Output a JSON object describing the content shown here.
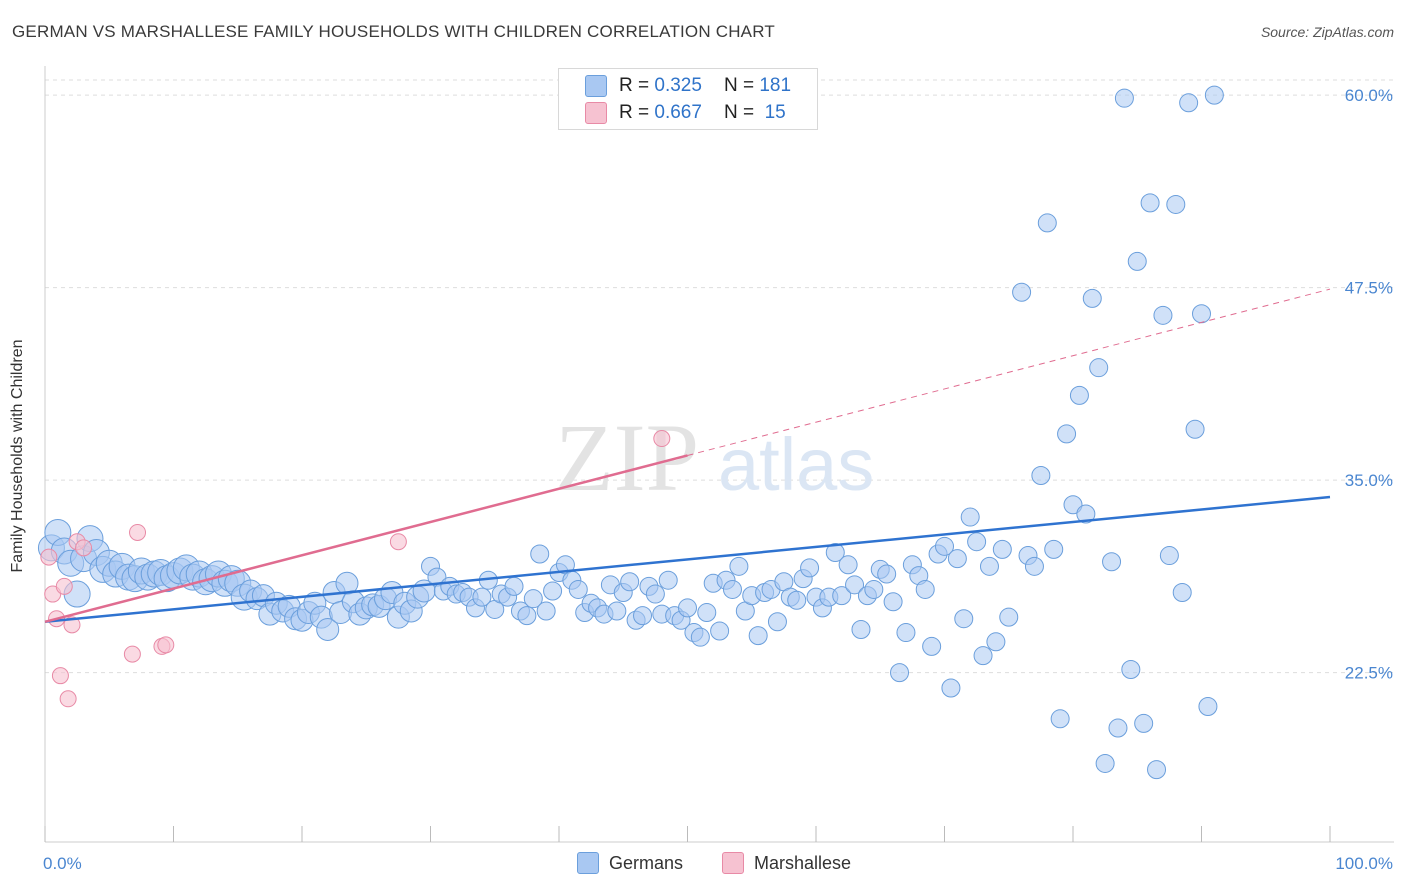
{
  "title": "GERMAN VS MARSHALLESE FAMILY HOUSEHOLDS WITH CHILDREN CORRELATION CHART",
  "source": "Source: ZipAtlas.com",
  "watermark": {
    "zip": "ZIP",
    "atlas": "atlas"
  },
  "colors": {
    "germans_fill": "#a9c8f2",
    "germans_stroke": "#6b9fdc",
    "germans_line": "#2f73d0",
    "marshallese_fill": "#f6c2d1",
    "marshallese_stroke": "#e88aa6",
    "marshallese_line": "#e06c90",
    "tick_label": "#4a86d0",
    "grid": "#dddddd"
  },
  "legend": {
    "germans": {
      "r_label": "R =",
      "r_value": "0.325",
      "n_label": "N =",
      "n_value": "181"
    },
    "marshallese": {
      "r_label": "R =",
      "r_value": "0.667",
      "n_label": "N =",
      "n_value": "15"
    }
  },
  "chart_data": {
    "type": "scatter",
    "title": "GERMAN VS MARSHALLESE FAMILY HOUSEHOLDS WITH CHILDREN CORRELATION CHART",
    "xlabel": "",
    "ylabel": "Family Households with Children",
    "xlim": [
      0,
      100
    ],
    "ylim": [
      11.5,
      61.5
    ],
    "y_ticks": [
      22.5,
      35.0,
      47.5,
      60.0
    ],
    "y_tick_labels": [
      "22.5%",
      "35.0%",
      "47.5%",
      "60.0%"
    ],
    "x_tick_labels": [
      "0.0%",
      "100.0%"
    ],
    "grid": "horizontal dashed",
    "legend_position": "top-center",
    "series": [
      {
        "name": "Germans",
        "trend": {
          "x": [
            0,
            100
          ],
          "y": [
            25.8,
            33.9
          ]
        },
        "points": [
          [
            0.5,
            30.6
          ],
          [
            1,
            31.6
          ],
          [
            1.5,
            30.4
          ],
          [
            2,
            29.6
          ],
          [
            2.5,
            27.6
          ],
          [
            3,
            29.9
          ],
          [
            3.5,
            31.2
          ],
          [
            4,
            30.3
          ],
          [
            4.5,
            29.2
          ],
          [
            5,
            29.6
          ],
          [
            5.5,
            28.9
          ],
          [
            6,
            29.4
          ],
          [
            6.5,
            28.7
          ],
          [
            7,
            28.6
          ],
          [
            7.5,
            29.1
          ],
          [
            8,
            28.7
          ],
          [
            8.5,
            28.9
          ],
          [
            9,
            29.0
          ],
          [
            9.5,
            28.6
          ],
          [
            10,
            28.8
          ],
          [
            10.5,
            29.1
          ],
          [
            11,
            29.3
          ],
          [
            11.5,
            28.7
          ],
          [
            12,
            28.9
          ],
          [
            12.5,
            28.4
          ],
          [
            13,
            28.6
          ],
          [
            13.5,
            28.9
          ],
          [
            14,
            28.3
          ],
          [
            14.5,
            28.6
          ],
          [
            15,
            28.3
          ],
          [
            15.5,
            27.4
          ],
          [
            16,
            27.8
          ],
          [
            16.5,
            27.3
          ],
          [
            17,
            27.5
          ],
          [
            17.5,
            26.3
          ],
          [
            18,
            27.0
          ],
          [
            18.5,
            26.5
          ],
          [
            19,
            26.8
          ],
          [
            19.5,
            26.0
          ],
          [
            20,
            25.9
          ],
          [
            20.5,
            26.4
          ],
          [
            21,
            27.0
          ],
          [
            21.5,
            26.1
          ],
          [
            22,
            25.3
          ],
          [
            22.5,
            27.7
          ],
          [
            23,
            26.4
          ],
          [
            23.5,
            28.3
          ],
          [
            24,
            27.1
          ],
          [
            24.5,
            26.3
          ],
          [
            25,
            26.7
          ],
          [
            25.5,
            26.9
          ],
          [
            26,
            26.8
          ],
          [
            26.5,
            27.3
          ],
          [
            27,
            27.7
          ],
          [
            27.5,
            26.1
          ],
          [
            28,
            27.0
          ],
          [
            28.5,
            26.5
          ],
          [
            29,
            27.4
          ],
          [
            29.5,
            27.8
          ],
          [
            30,
            29.4
          ],
          [
            30.5,
            28.7
          ],
          [
            31,
            27.8
          ],
          [
            31.5,
            28.1
          ],
          [
            32,
            27.6
          ],
          [
            32.5,
            27.7
          ],
          [
            33,
            27.4
          ],
          [
            33.5,
            26.7
          ],
          [
            34,
            27.4
          ],
          [
            34.5,
            28.5
          ],
          [
            35,
            26.6
          ],
          [
            35.5,
            27.6
          ],
          [
            36,
            27.4
          ],
          [
            36.5,
            28.1
          ],
          [
            37,
            26.5
          ],
          [
            37.5,
            26.2
          ],
          [
            38,
            27.3
          ],
          [
            38.5,
            30.2
          ],
          [
            39,
            26.5
          ],
          [
            39.5,
            27.8
          ],
          [
            40,
            29.0
          ],
          [
            40.5,
            29.5
          ],
          [
            41,
            28.5
          ],
          [
            41.5,
            27.9
          ],
          [
            42,
            26.4
          ],
          [
            42.5,
            27.0
          ],
          [
            43,
            26.7
          ],
          [
            43.5,
            26.3
          ],
          [
            44,
            28.2
          ],
          [
            44.5,
            26.5
          ],
          [
            45,
            27.7
          ],
          [
            45.5,
            28.4
          ],
          [
            46,
            25.9
          ],
          [
            46.5,
            26.2
          ],
          [
            47,
            28.1
          ],
          [
            47.5,
            27.6
          ],
          [
            48,
            26.3
          ],
          [
            48.5,
            28.5
          ],
          [
            49,
            26.2
          ],
          [
            49.5,
            25.9
          ],
          [
            50,
            26.7
          ],
          [
            50.5,
            25.1
          ],
          [
            51,
            24.8
          ],
          [
            51.5,
            26.4
          ],
          [
            52,
            28.3
          ],
          [
            52.5,
            25.2
          ],
          [
            53,
            28.5
          ],
          [
            53.5,
            27.9
          ],
          [
            54,
            29.4
          ],
          [
            54.5,
            26.5
          ],
          [
            55,
            27.5
          ],
          [
            55.5,
            24.9
          ],
          [
            56,
            27.7
          ],
          [
            56.5,
            27.9
          ],
          [
            57,
            25.8
          ],
          [
            57.5,
            28.4
          ],
          [
            58,
            27.4
          ],
          [
            58.5,
            27.2
          ],
          [
            59,
            28.6
          ],
          [
            59.5,
            29.3
          ],
          [
            60,
            27.4
          ],
          [
            60.5,
            26.7
          ],
          [
            61,
            27.4
          ],
          [
            61.5,
            30.3
          ],
          [
            62,
            27.5
          ],
          [
            62.5,
            29.5
          ],
          [
            63,
            28.2
          ],
          [
            63.5,
            25.3
          ],
          [
            64,
            27.5
          ],
          [
            64.5,
            27.9
          ],
          [
            65,
            29.2
          ],
          [
            65.5,
            28.9
          ],
          [
            66,
            27.1
          ],
          [
            66.5,
            22.5
          ],
          [
            67,
            25.1
          ],
          [
            67.5,
            29.5
          ],
          [
            68,
            28.8
          ],
          [
            68.5,
            27.9
          ],
          [
            69,
            24.2
          ],
          [
            69.5,
            30.2
          ],
          [
            70,
            30.7
          ],
          [
            70.5,
            21.5
          ],
          [
            71,
            29.9
          ],
          [
            71.5,
            26.0
          ],
          [
            72,
            32.6
          ],
          [
            72.5,
            31.0
          ],
          [
            73,
            23.6
          ],
          [
            73.5,
            29.4
          ],
          [
            74,
            24.5
          ],
          [
            74.5,
            30.5
          ],
          [
            75,
            26.1
          ],
          [
            76,
            47.2
          ],
          [
            76.5,
            30.1
          ],
          [
            77,
            29.4
          ],
          [
            77.5,
            35.3
          ],
          [
            78,
            51.7
          ],
          [
            78.5,
            30.5
          ],
          [
            79,
            19.5
          ],
          [
            79.5,
            38.0
          ],
          [
            80,
            33.4
          ],
          [
            80.5,
            40.5
          ],
          [
            81,
            32.8
          ],
          [
            81.5,
            46.8
          ],
          [
            82,
            42.3
          ],
          [
            82.5,
            16.6
          ],
          [
            83,
            29.7
          ],
          [
            83.5,
            18.9
          ],
          [
            84,
            59.8
          ],
          [
            84.5,
            22.7
          ],
          [
            85,
            49.2
          ],
          [
            85.5,
            19.2
          ],
          [
            86,
            53.0
          ],
          [
            86.5,
            16.2
          ],
          [
            87,
            45.7
          ],
          [
            87.5,
            30.1
          ],
          [
            88,
            52.9
          ],
          [
            88.5,
            27.7
          ],
          [
            89,
            59.5
          ],
          [
            89.5,
            38.3
          ],
          [
            90,
            45.8
          ],
          [
            90.5,
            20.3
          ],
          [
            91,
            60.0
          ]
        ]
      },
      {
        "name": "Marshallese",
        "trend": {
          "x": [
            0,
            100
          ],
          "y": [
            25.8,
            47.4
          ]
        },
        "points": [
          [
            0.3,
            30.0
          ],
          [
            0.6,
            27.6
          ],
          [
            0.9,
            26.0
          ],
          [
            1.2,
            22.3
          ],
          [
            1.5,
            28.1
          ],
          [
            1.8,
            20.8
          ],
          [
            2.1,
            25.6
          ],
          [
            2.5,
            31.0
          ],
          [
            6.8,
            23.7
          ],
          [
            7.2,
            31.6
          ],
          [
            9.1,
            24.2
          ],
          [
            9.4,
            24.3
          ],
          [
            27.5,
            31.0
          ],
          [
            48.0,
            37.7
          ],
          [
            3.0,
            30.6
          ]
        ]
      }
    ]
  },
  "bottom_legend": {
    "germans": "Germans",
    "marshallese": "Marshallese"
  }
}
